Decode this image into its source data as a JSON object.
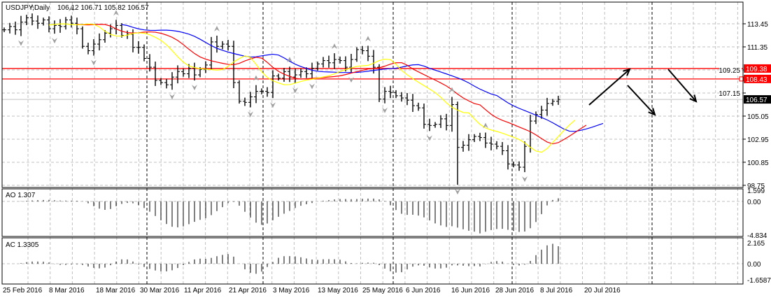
{
  "chart_data": {
    "type": "ohlc",
    "title": "USDJPY,Daily",
    "ohlc_readout": "106.12 106.71 105.82 106.57",
    "price_ticks": [
      "113.45",
      "111.35",
      "109.25",
      "107.15",
      "105.05",
      "102.95",
      "100.85",
      "98.75"
    ],
    "ylim": [
      98.75,
      114.6
    ],
    "closes": [
      112.9,
      113.2,
      112.9,
      113.6,
      114.0,
      113.7,
      113.5,
      113.8,
      113.0,
      113.3,
      113.2,
      113.8,
      113.5,
      113.0,
      111.4,
      111.0,
      111.6,
      112.0,
      112.6,
      113.0,
      113.3,
      112.4,
      112.5,
      111.3,
      111.3,
      110.3,
      109.5,
      108.3,
      108.1,
      107.9,
      108.6,
      109.1,
      108.9,
      109.4,
      108.8,
      109.3,
      109.7,
      111.8,
      111.4,
      111.6,
      111.4,
      108.1,
      106.4,
      106.3,
      106.8,
      107.3,
      107.3,
      107.2,
      108.7,
      108.5,
      109.1,
      108.6,
      108.8,
      109.1,
      108.9,
      109.4,
      109.8,
      110.1,
      109.9,
      110.2,
      110.1,
      109.5,
      110.2,
      111.1,
      111.0,
      110.5,
      109.5,
      106.6,
      107.3,
      107.2,
      106.9,
      106.7,
      106.5,
      106.0,
      105.8,
      104.3,
      104.2,
      104.3,
      104.8,
      104.2,
      106.1,
      102.2,
      102.4,
      102.9,
      103.2,
      103.1,
      102.6,
      102.5,
      102.3,
      101.9,
      100.7,
      100.6,
      100.4,
      102.3,
      104.6,
      105.2,
      105.6,
      106.2,
      106.4,
      106.57
    ],
    "indicators": [
      "Alligator",
      "Fractals"
    ],
    "colors": {
      "jaw": "#0000ff",
      "teeth": "#ff0000",
      "lips": "#ffff00",
      "hline": "#ff0000",
      "bars": "#000000"
    },
    "hlines": [
      {
        "price": 109.38,
        "label": "109.38"
      },
      {
        "price": 108.43,
        "label": "108.43"
      }
    ],
    "current_price": {
      "price": 106.57,
      "label": "106.57"
    },
    "x_labels": [
      "25 Feb 2016",
      "8 Mar 2016",
      "18 Mar 2016",
      "30 Mar 2016",
      "11 Apr 2016",
      "21 Apr 2016",
      "3 May 2016",
      "13 May 2016",
      "25 May 2016",
      "6 Jun 2016",
      "16 Jun 2016",
      "28 Jun 2016",
      "8 Jul 2016",
      "20 Jul 2016"
    ],
    "ao": {
      "label": "AO 1.307",
      "ticks": [
        "1.599",
        "0.00",
        "-4.834"
      ],
      "range": [
        -4.834,
        1.599
      ]
    },
    "ac": {
      "label": "AC 1.3305",
      "ticks": [
        "2.165",
        "0.00",
        "-1.6587"
      ],
      "range": [
        -1.6587,
        2.165
      ]
    }
  }
}
